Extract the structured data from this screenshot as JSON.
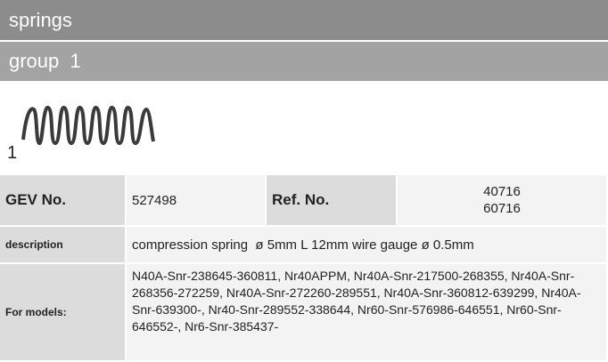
{
  "header": {
    "title": "springs"
  },
  "group": {
    "title": "group  1"
  },
  "image": {
    "label": "1"
  },
  "table": {
    "gev_label": "GEV No.",
    "gev_value": "527498",
    "ref_label": "Ref. No.",
    "ref_values": [
      "40716",
      "60716"
    ],
    "description_label": "description",
    "description_value": "compression spring  ø 5mm L 12mm wire gauge ø 0.5mm",
    "models_label": "For models:",
    "models_value": "N40A-Snr-238645-360811, Nr40APPM, Nr40A-Snr-217500-268355, Nr40A-Snr-268356-272259, Nr40A-Snr-272260-289551, Nr40A-Snr-360812-639299, Nr40A-Snr-639300-, Nr40-Snr-289552-338644, Nr60-Snr-576986-646551, Nr60-Snr-646552-, Nr6-Snr-385437-"
  }
}
